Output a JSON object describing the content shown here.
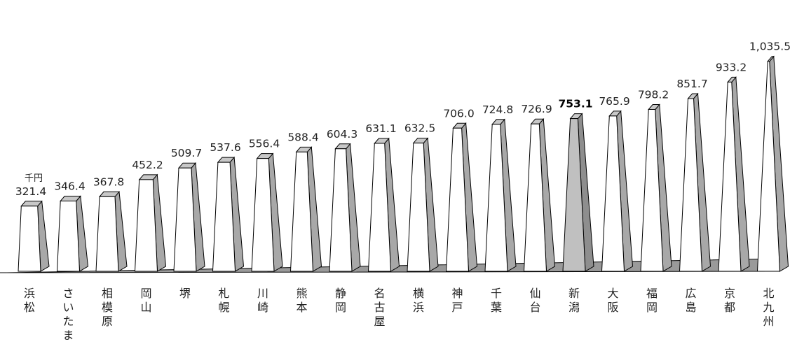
{
  "chart_data": {
    "type": "bar",
    "unit_label": "千円",
    "categories": [
      "浜松",
      "さいたま",
      "相模原",
      "岡山",
      "堺",
      "札幌",
      "川崎",
      "熊本",
      "静岡",
      "名古屋",
      "横浜",
      "神戸",
      "千葉",
      "仙台",
      "新潟",
      "大阪",
      "福岡",
      "広島",
      "京都",
      "北九州"
    ],
    "series": [
      {
        "values": [
          321.4,
          346.4,
          367.8,
          452.2,
          509.7,
          537.6,
          556.4,
          588.4,
          604.3,
          631.1,
          632.5,
          706.0,
          724.8,
          726.9,
          753.1,
          765.9,
          798.2,
          851.7,
          933.2,
          1035.5
        ],
        "value_labels": [
          "321.4",
          "346.4",
          "367.8",
          "452.2",
          "509.7",
          "537.6",
          "556.4",
          "588.4",
          "604.3",
          "631.1",
          "632.5",
          "706.0",
          "724.8",
          "726.9",
          "753.1",
          "765.9",
          "798.2",
          "851.7",
          "933.2",
          "1,035.5"
        ]
      }
    ],
    "highlight_category": "新潟",
    "colors": {
      "bar_front": "#ffffff",
      "bar_side": "#a8a8a8",
      "bar_top": "#c8c8c8",
      "highlight_front": "#c0c0c0",
      "highlight_side": "#8e8e8e",
      "floor": "#9a9a9a",
      "outline": "#000000"
    },
    "grid": false,
    "legend": "none"
  }
}
